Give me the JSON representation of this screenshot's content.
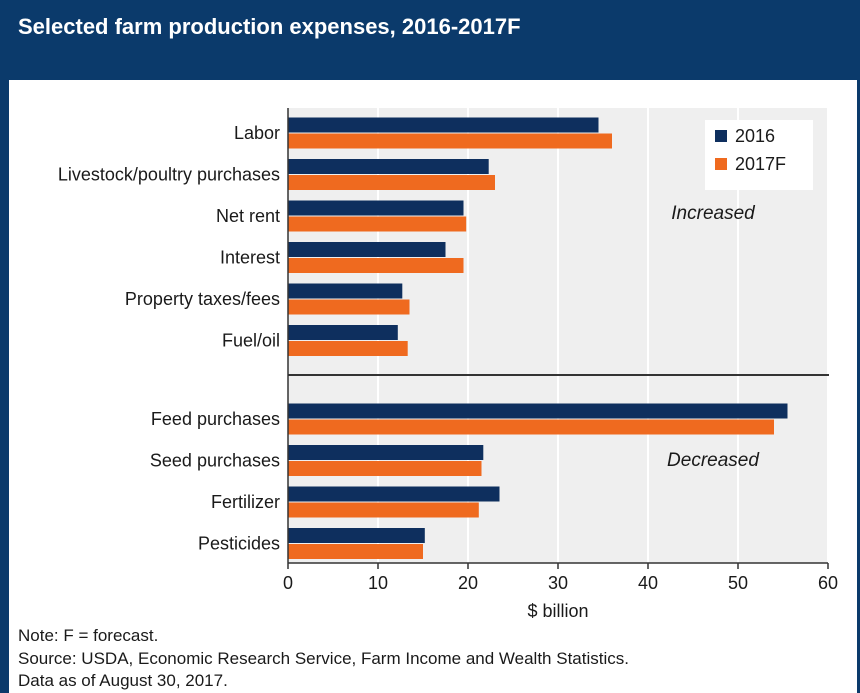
{
  "title": "Selected farm production expenses, 2016-2017F",
  "notes": {
    "note": "Note: F = forecast.",
    "source": "Source: USDA, Economic Research Service, Farm Income and Wealth Statistics.",
    "as_of": "Data as of August 30, 2017."
  },
  "colors": {
    "header": "#0b3a6b",
    "series_2016": "#0e2f5e",
    "series_2017F": "#ef6a1f",
    "plot_bg": "#efefef"
  },
  "chart_data": {
    "type": "bar",
    "orientation": "horizontal",
    "xlabel": "$ billion",
    "xlim": [
      0,
      60
    ],
    "xticks": [
      0,
      10,
      20,
      30,
      40,
      50,
      60
    ],
    "grid": true,
    "legend_position": "top-right",
    "series_names": [
      "2016",
      "2017F"
    ],
    "groups": [
      {
        "label": "Increased",
        "categories": [
          "Labor",
          "Livestock/poultry purchases",
          "Net rent",
          "Interest",
          "Property taxes/fees",
          "Fuel/oil"
        ],
        "series": [
          {
            "name": "2016",
            "values": [
              34.5,
              22.3,
              19.5,
              17.5,
              12.7,
              12.2
            ]
          },
          {
            "name": "2017F",
            "values": [
              36.0,
              23.0,
              19.8,
              19.5,
              13.5,
              13.3
            ]
          }
        ]
      },
      {
        "label": "Decreased",
        "categories": [
          "Feed purchases",
          "Seed purchases",
          "Fertilizer",
          "Pesticides"
        ],
        "series": [
          {
            "name": "2016",
            "values": [
              55.5,
              21.7,
              23.5,
              15.2
            ]
          },
          {
            "name": "2017F",
            "values": [
              54.0,
              21.5,
              21.2,
              15.0
            ]
          }
        ]
      }
    ]
  }
}
